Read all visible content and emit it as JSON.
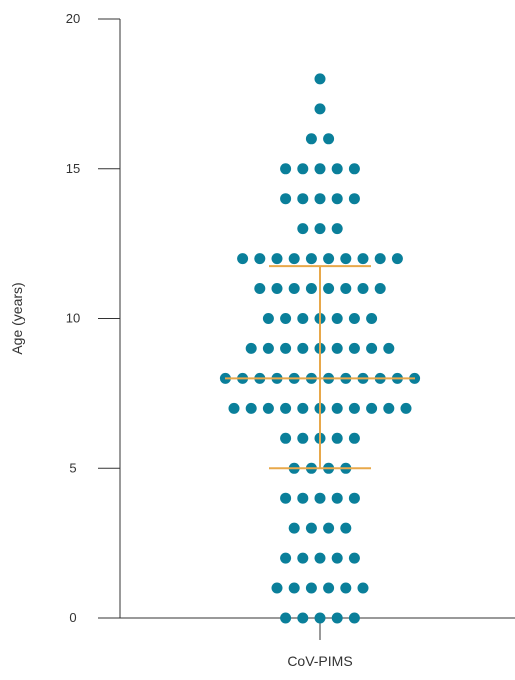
{
  "chart_data": {
    "type": "scatter",
    "subtype": "beeswarm-dot-plot",
    "title": "",
    "xlabel": "",
    "ylabel": "Age (years)",
    "categories": [
      "CoV-PIMS"
    ],
    "ylim": [
      0,
      20
    ],
    "yticks": [
      0,
      5,
      10,
      15,
      20
    ],
    "ytick_labels": [
      "0",
      "5",
      "10",
      "15",
      "20"
    ],
    "grid": false,
    "legend": "none",
    "series": [
      {
        "category": "CoV-PIMS",
        "counts_by_age": [
          {
            "age": 0,
            "count": 5
          },
          {
            "age": 1,
            "count": 6
          },
          {
            "age": 2,
            "count": 5
          },
          {
            "age": 3,
            "count": 4
          },
          {
            "age": 4,
            "count": 5
          },
          {
            "age": 5,
            "count": 4
          },
          {
            "age": 6,
            "count": 5
          },
          {
            "age": 7,
            "count": 11
          },
          {
            "age": 8,
            "count": 12
          },
          {
            "age": 9,
            "count": 9
          },
          {
            "age": 10,
            "count": 7
          },
          {
            "age": 11,
            "count": 8
          },
          {
            "age": 12,
            "count": 10
          },
          {
            "age": 13,
            "count": 3
          },
          {
            "age": 14,
            "count": 5
          },
          {
            "age": 15,
            "count": 5
          },
          {
            "age": 16,
            "count": 2
          },
          {
            "age": 17,
            "count": 1
          },
          {
            "age": 18,
            "count": 1
          }
        ]
      }
    ],
    "summary": {
      "median": 8,
      "q1": 5,
      "q3": 11.75
    },
    "colors": {
      "points": "#0a7f9a",
      "summary_lines": "#e8a84a",
      "axis": "#333333"
    }
  }
}
